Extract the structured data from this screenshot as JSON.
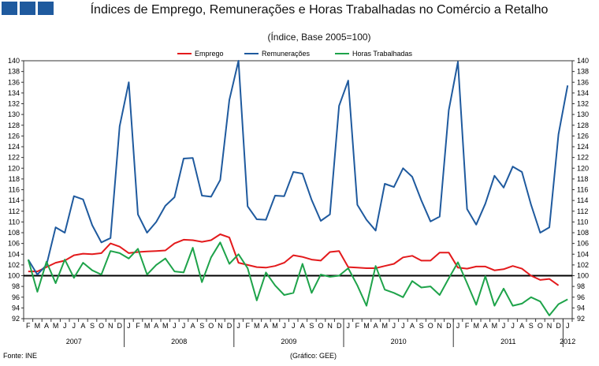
{
  "header": {
    "logo_icon": "ine-logo-icon",
    "title": "Índices de Emprego, Remunerações e Horas Trabalhadas no Comércio a Retalho",
    "subtitle": "(Índice, Base 2005=100)"
  },
  "footer": {
    "source": "Fonte: INE",
    "credit": "(Gráfico: GEE)"
  },
  "chart_data": {
    "type": "line",
    "title": "Índices de Emprego, Remunerações e Horas Trabalhadas no Comércio a Retalho",
    "subtitle": "(Índice, Base 2005=100)",
    "ylim": [
      92,
      140
    ],
    "ytick_step": 2,
    "reference_line": 100,
    "legend_position": "top",
    "month_labels": [
      "F",
      "M",
      "A",
      "M",
      "J",
      "J",
      "A",
      "S",
      "O",
      "N",
      "D",
      "J",
      "F",
      "M",
      "A",
      "M",
      "J",
      "J",
      "A",
      "S",
      "O",
      "N",
      "D",
      "J",
      "F",
      "M",
      "A",
      "M",
      "J",
      "J",
      "A",
      "S",
      "O",
      "N",
      "D",
      "J",
      "F",
      "M",
      "A",
      "M",
      "J",
      "J",
      "A",
      "S",
      "O",
      "N",
      "D",
      "J",
      "F",
      "M",
      "A",
      "M",
      "J",
      "J",
      "A",
      "S",
      "O",
      "N",
      "D",
      "J"
    ],
    "year_labels": [
      {
        "label": "2007",
        "start": 0,
        "end": 11
      },
      {
        "label": "2008",
        "start": 11,
        "end": 23
      },
      {
        "label": "2009",
        "start": 23,
        "end": 35
      },
      {
        "label": "2010",
        "start": 35,
        "end": 47
      },
      {
        "label": "2011",
        "start": 47,
        "end": 59
      },
      {
        "label": "2012",
        "start": 59,
        "end": 60
      }
    ],
    "series": [
      {
        "name": "Emprego",
        "color": "#e31a1c",
        "values": [
          100.8,
          100.8,
          101.6,
          102.4,
          102.8,
          103.8,
          104.1,
          104,
          104.2,
          106,
          105.4,
          104.2,
          104.4,
          104.5,
          104.6,
          104.7,
          106,
          106.7,
          106.6,
          106.3,
          106.6,
          107.7,
          107.1,
          102.4,
          102,
          101.6,
          101.5,
          101.8,
          102.4,
          103.8,
          103.5,
          103,
          102.8,
          104.4,
          104.6,
          101.6,
          101.5,
          101.4,
          101.4,
          101.8,
          102.2,
          103.4,
          103.7,
          102.8,
          102.8,
          104.3,
          104.3,
          101.5,
          101.3,
          101.7,
          101.7,
          101,
          101.2,
          101.8,
          101.3,
          100,
          99.2,
          99.4,
          98.2
        ]
      },
      {
        "name": "Remunerações",
        "color": "#1f5a9e",
        "values": [
          103,
          100.2,
          102,
          109,
          108,
          114.8,
          114.2,
          109.4,
          106.2,
          107,
          127.8,
          136,
          111.4,
          108,
          110,
          113,
          114.6,
          121.8,
          121.9,
          114.9,
          114.7,
          117.8,
          132.7,
          140,
          112.9,
          110.5,
          110.4,
          114.9,
          114.8,
          119.3,
          119,
          114.1,
          110.2,
          111.4,
          131.6,
          136.3,
          113.2,
          110.4,
          108.4,
          117.1,
          116.5,
          120,
          118.4,
          114,
          110.1,
          111,
          130.8,
          139.8,
          112.4,
          109.5,
          113.4,
          118.6,
          116.4,
          120.3,
          119.3,
          113.2,
          108,
          109,
          126.3,
          135.4
        ]
      },
      {
        "name": "Horas Trabalhadas",
        "color": "#1ea34a",
        "values": [
          103,
          97,
          102.6,
          98.6,
          103,
          99.6,
          102.4,
          101,
          100.2,
          104.6,
          104.2,
          103.2,
          105,
          100.2,
          102,
          103.2,
          100.8,
          100.6,
          105.2,
          98.8,
          103.4,
          106.2,
          102.2,
          104,
          101.4,
          95.4,
          100.6,
          98.2,
          96.4,
          96.8,
          102.2,
          96.8,
          100.2,
          99.8,
          100,
          101.4,
          98.2,
          94.4,
          101.8,
          97.4,
          96.8,
          96,
          99,
          97.8,
          98,
          96.4,
          99.5,
          102.5,
          98.6,
          94.6,
          99.9,
          94.4,
          97.6,
          94.4,
          94.8,
          96,
          95.2,
          92.6,
          94.7,
          95.6
        ]
      }
    ]
  }
}
